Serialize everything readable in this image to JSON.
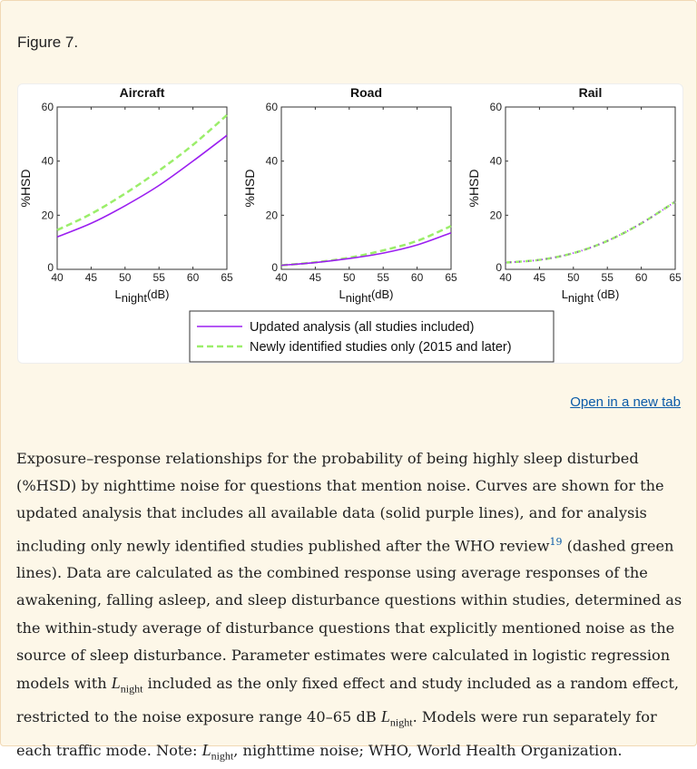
{
  "figure_label": "Figure 7.",
  "open_link": "Open in a new tab",
  "caption": {
    "p1": "Exposure–response relationships for the probability of being highly sleep disturbed (%HSD) by nighttime noise for questions that mention noise. Curves are shown for the updated analysis that includes all available data (solid purple lines), and for analysis including only newly identified studies published after the WHO review",
    "ref": "19",
    "p2": " (dashed green lines). Data are calculated as the combined response using average responses of the awakening, falling asleep, and sleep disturbance questions within studies, determined as the within-study average of disturbance questions that explicitly mentioned noise as the source of sleep disturbance. Parameter estimates were calculated in logistic regression models with ",
    "math_L": "L",
    "math_sub": "night",
    "p3": " included as the only fixed effect and study included as a random effect, restricted to the noise exposure range 40–65 dB ",
    "p4": ". Models were run separately for each traffic mode. Note: ",
    "p5": ", nighttime noise; WHO, World Health Organization."
  },
  "colors": {
    "updated": "#9b1ff0",
    "new": "#9bee6a",
    "link": "#0a5ba8"
  },
  "chart_data": [
    {
      "type": "line",
      "title": "Aircraft",
      "xlabel": "L",
      "xlabel_sub": "night",
      "xlabel_unit": "(dB)",
      "ylabel": "%HSD",
      "xlim": [
        40,
        65
      ],
      "ylim": [
        0,
        60
      ],
      "xticks": [
        "40",
        "45",
        "50",
        "55",
        "60",
        "65"
      ],
      "yticks": [
        "0",
        "20",
        "40",
        "60"
      ],
      "x": [
        40,
        45,
        50,
        55,
        60,
        65
      ],
      "series": [
        {
          "name": "Updated analysis (all studies included)",
          "values": [
            12,
            17,
            23.5,
            31,
            40,
            49.5
          ]
        },
        {
          "name": "Newly identified studies only (2015 and later)",
          "values": [
            14.5,
            20.5,
            28,
            36.5,
            46,
            57
          ]
        }
      ]
    },
    {
      "type": "line",
      "title": "Road",
      "xlabel": "L",
      "xlabel_sub": "night",
      "xlabel_unit": "(dB)",
      "ylabel": "%HSD",
      "xlim": [
        40,
        65
      ],
      "ylim": [
        0,
        60
      ],
      "xticks": [
        "40",
        "45",
        "50",
        "55",
        "60",
        "65"
      ],
      "yticks": [
        "0",
        "20",
        "40",
        "60"
      ],
      "x": [
        40,
        45,
        50,
        55,
        60,
        65
      ],
      "series": [
        {
          "name": "Updated analysis (all studies included)",
          "values": [
            1.5,
            2.5,
            4,
            6,
            9,
            13.5
          ]
        },
        {
          "name": "Newly identified studies only (2015 and later)",
          "values": [
            1.5,
            2.6,
            4.3,
            7,
            10.5,
            16
          ]
        }
      ]
    },
    {
      "type": "line",
      "title": "Rail",
      "xlabel": "L",
      "xlabel_sub": "night",
      "xlabel_unit": " (dB)",
      "ylabel": "%HSD",
      "xlim": [
        40,
        65
      ],
      "ylim": [
        0,
        60
      ],
      "xticks": [
        "40",
        "45",
        "50",
        "55",
        "60",
        "65"
      ],
      "yticks": [
        "0",
        "20",
        "40",
        "60"
      ],
      "x": [
        40,
        45,
        50,
        55,
        60,
        65
      ],
      "series": [
        {
          "name": "Updated analysis (all studies included)",
          "values": [
            2.5,
            3.5,
            6,
            10.5,
            17,
            25
          ]
        },
        {
          "name": "Newly identified studies only (2015 and later)",
          "values": [
            2.5,
            3.5,
            6,
            10.5,
            17,
            25
          ]
        }
      ]
    }
  ],
  "legend": {
    "placement": "bottom-center",
    "items": [
      "Updated analysis (all studies included)",
      "Newly identified studies only (2015 and later)"
    ]
  }
}
